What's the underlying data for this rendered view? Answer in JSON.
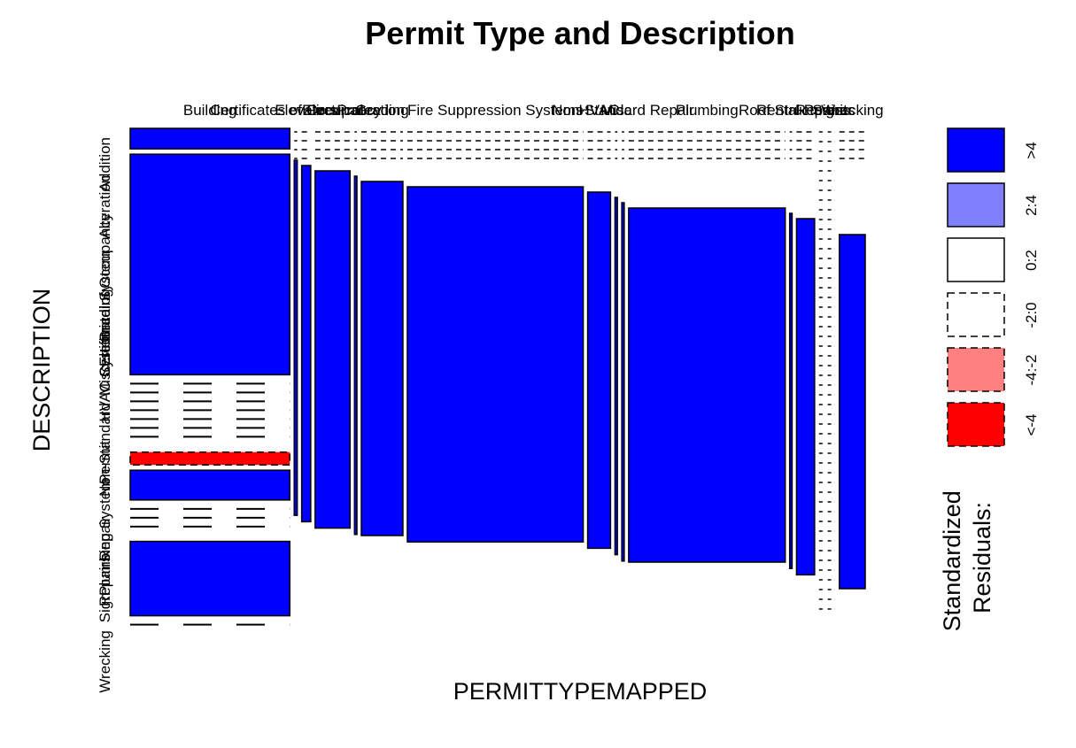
{
  "chart_data": {
    "type": "mosaic",
    "title": "Permit Type and Description",
    "xlabel": "PERMITTYPEMAPPED",
    "ylabel": "DESCRIPTION",
    "x_categories": [
      {
        "label": "Building",
        "width": 0.265,
        "filled": true
      },
      {
        "label": "Certificates of Occupancy",
        "width": 0.005,
        "filled": true
      },
      {
        "label": "Elevators",
        "width": 0.015,
        "filled": true
      },
      {
        "label": "Electrical",
        "width": 0.058,
        "filled": true
      },
      {
        "label": "Fire Protection",
        "width": 0.004,
        "filled": true
      },
      {
        "label": "Grading",
        "width": 0.069,
        "filled": true
      },
      {
        "label": "Fire Suppression Systems",
        "width": 0.292,
        "filled": true
      },
      {
        "label": "HVAC",
        "width": 0.038,
        "filled": true
      },
      {
        "label": "Misc",
        "width": 0.004,
        "filled": true
      },
      {
        "label": "Non-Standard Repair",
        "width": 0.004,
        "filled": true
      },
      {
        "label": "Plumbing",
        "width": 0.26,
        "filled": true
      },
      {
        "label": "Roof Structures",
        "width": 0.004,
        "filled": true
      },
      {
        "label": "Rental Permits",
        "width": 0.03,
        "filled": true
      },
      {
        "label": "Repairs",
        "width": 0.007,
        "filled": false
      },
      {
        "label": "Signs",
        "width": 0.012,
        "filled": false
      },
      {
        "label": "Wrecking",
        "width": 0.043,
        "filled": true
      }
    ],
    "y_tick_labels": [
      "Addition",
      "Alteration",
      "Certificate of Occupancy",
      "Electrical System",
      "Grading",
      "HVAC System",
      "Misc",
      "Non-Standard",
      "Permit",
      "Plumbing System",
      "Repair",
      "Repairs",
      "Sign",
      "Wrecking"
    ],
    "building_rows": [
      {
        "share": 0.04,
        "residual": ">4"
      },
      {
        "share": 0.43,
        "residual": ">4"
      },
      {
        "share": 0.13,
        "residual": "-2:0"
      },
      {
        "share": 0.025,
        "residual": "<-4"
      },
      {
        "share": 0.058,
        "residual": ">4"
      },
      {
        "share": 0.06,
        "residual": "-2:0"
      },
      {
        "share": 0.145,
        "residual": ">4"
      },
      {
        "share": 0.03,
        "residual": "-2:0"
      }
    ],
    "other_cell_residual": ">4",
    "legend": {
      "title": "Standardized Residuals:",
      "placement": "right",
      "items": [
        {
          "label": ">4",
          "fill": "#0000FF",
          "dashed": false
        },
        {
          "label": "2:4",
          "fill": "#8080FF",
          "dashed": false
        },
        {
          "label": "0:2",
          "fill": "#FFFFFF",
          "dashed": false
        },
        {
          "label": "-2:0",
          "fill": "#FFFFFF",
          "dashed": true
        },
        {
          "label": "-4:-2",
          "fill": "#FF8080",
          "dashed": true
        },
        {
          "label": "<-4",
          "fill": "#FF0000",
          "dashed": true
        }
      ]
    }
  }
}
